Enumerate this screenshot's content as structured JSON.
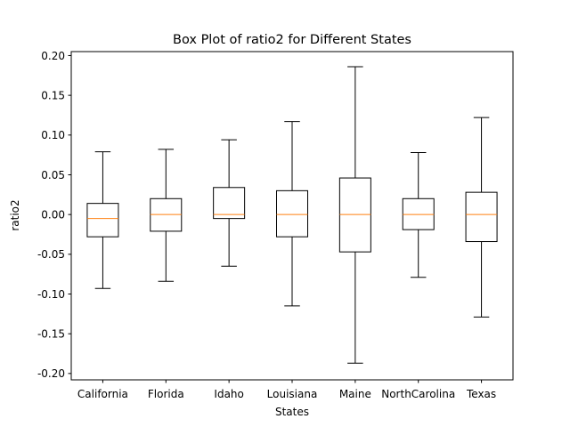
{
  "chart_data": {
    "type": "box",
    "title": "Box Plot of ratio2 for Different States",
    "xlabel": "States",
    "ylabel": "ratio2",
    "ylim": [
      -0.208,
      0.205
    ],
    "yticks": [
      "-0.20",
      "-0.15",
      "-0.10",
      "-0.05",
      "0.00",
      "0.05",
      "0.10",
      "0.15",
      "0.20"
    ],
    "grid": false,
    "box_color": "#000000",
    "median_color": "#ff7f0e",
    "categories": [
      "California",
      "Florida",
      "Idaho",
      "Louisiana",
      "Maine",
      "NorthCarolina",
      "Texas"
    ],
    "boxes": [
      {
        "whislo": -0.093,
        "q1": -0.028,
        "med": -0.005,
        "q3": 0.014,
        "whishi": 0.079
      },
      {
        "whislo": -0.084,
        "q1": -0.021,
        "med": 0.0,
        "q3": 0.02,
        "whishi": 0.082
      },
      {
        "whislo": -0.065,
        "q1": -0.005,
        "med": 0.0,
        "q3": 0.034,
        "whishi": 0.094
      },
      {
        "whislo": -0.115,
        "q1": -0.028,
        "med": 0.0,
        "q3": 0.03,
        "whishi": 0.117
      },
      {
        "whislo": -0.187,
        "q1": -0.047,
        "med": 0.0,
        "q3": 0.046,
        "whishi": 0.186
      },
      {
        "whislo": -0.079,
        "q1": -0.019,
        "med": 0.0,
        "q3": 0.02,
        "whishi": 0.078
      },
      {
        "whislo": -0.129,
        "q1": -0.034,
        "med": 0.0,
        "q3": 0.028,
        "whishi": 0.122
      }
    ]
  }
}
